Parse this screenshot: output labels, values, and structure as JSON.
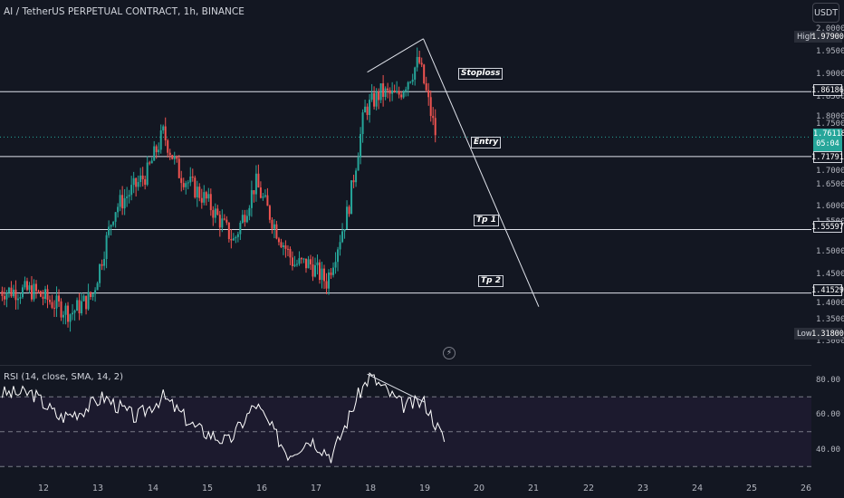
{
  "header": {
    "title": "AI / TetherUS PERPETUAL CONTRACT, 1h, BINANCE",
    "currency_button": "USDT"
  },
  "price_axis": {
    "ticks": [
      "2.00000",
      "1.95000",
      "1.90000",
      "1.85000",
      "1.80000",
      "1.75000",
      "1.70000",
      "1.65000",
      "1.60000",
      "1.55000",
      "1.50000",
      "1.45000",
      "1.40000",
      "1.35000",
      "1.30000"
    ],
    "high_label": "High",
    "high_value": "1.97900",
    "low_label": "Low",
    "low_value": "1.31800",
    "current_price": "1.76118",
    "countdown": "05:04"
  },
  "levels": {
    "stoploss": {
      "label": "Stoploss",
      "value": "1.86186"
    },
    "entry": {
      "label": "Entry",
      "value": "1.71791"
    },
    "tp1": {
      "label": "Tp 1",
      "value": "1.55597"
    },
    "tp2": {
      "label": "Tp 2",
      "value": "1.41529"
    }
  },
  "rsi": {
    "title": "RSI (14, close, SMA, 14, 2)",
    "ticks": [
      "80.00",
      "60.00",
      "40.00"
    ]
  },
  "time_axis": {
    "ticks": [
      "12",
      "13",
      "14",
      "15",
      "16",
      "17",
      "18",
      "19",
      "20",
      "21",
      "22",
      "23",
      "24",
      "25",
      "26"
    ]
  },
  "colors": {
    "background": "#131722",
    "up": "#26a69a",
    "down": "#ef5350",
    "rsi_line": "#ffffff",
    "rsi_band": "#1c1a2e"
  },
  "icons": {
    "alert": "lightning-icon"
  },
  "chart_data": {
    "type": "candlestick",
    "symbol": "AI / TetherUS PERPETUAL CONTRACT",
    "interval": "1h",
    "x_range": [
      "12",
      "26"
    ],
    "ylim": [
      1.3,
      2.0
    ],
    "horizontal_levels": [
      1.86186,
      1.71791,
      1.55597,
      1.41529
    ],
    "session_high": 1.979,
    "session_low": 1.318,
    "last_price": 1.76118,
    "anchor_points": [
      {
        "x": "11.8",
        "y": 1.42
      },
      {
        "x": "12.5",
        "y": 1.37
      },
      {
        "x": "12.9",
        "y": 1.41
      },
      {
        "x": "13.3",
        "y": 1.6
      },
      {
        "x": "13.9",
        "y": 1.68
      },
      {
        "x": "14.2",
        "y": 1.77
      },
      {
        "x": "14.5",
        "y": 1.68
      },
      {
        "x": "15.0",
        "y": 1.62
      },
      {
        "x": "15.5",
        "y": 1.53
      },
      {
        "x": "15.9",
        "y": 1.66
      },
      {
        "x": "16.3",
        "y": 1.55
      },
      {
        "x": "16.6",
        "y": 1.48
      },
      {
        "x": "16.9",
        "y": 1.48
      },
      {
        "x": "17.2",
        "y": 1.44
      },
      {
        "x": "17.6",
        "y": 1.6
      },
      {
        "x": "17.9",
        "y": 1.82
      },
      {
        "x": "18.2",
        "y": 1.86
      },
      {
        "x": "18.5",
        "y": 1.85
      },
      {
        "x": "18.9",
        "y": 1.93
      },
      {
        "x": "19.2",
        "y": 1.77
      }
    ],
    "rsi_ylim": [
      30,
      85
    ],
    "rsi_bands": [
      70,
      50,
      30
    ],
    "rsi_anchor_points": [
      {
        "x": "11.8",
        "y": 72
      },
      {
        "x": "12.3",
        "y": 58
      },
      {
        "x": "12.7",
        "y": 62
      },
      {
        "x": "13.1",
        "y": 70
      },
      {
        "x": "13.7",
        "y": 58
      },
      {
        "x": "14.2",
        "y": 70
      },
      {
        "x": "14.8",
        "y": 52
      },
      {
        "x": "15.4",
        "y": 44
      },
      {
        "x": "15.9",
        "y": 66
      },
      {
        "x": "16.5",
        "y": 37
      },
      {
        "x": "16.9",
        "y": 46
      },
      {
        "x": "17.3",
        "y": 36
      },
      {
        "x": "17.8",
        "y": 72
      },
      {
        "x": "18.0",
        "y": 82
      },
      {
        "x": "18.6",
        "y": 65
      },
      {
        "x": "19.0",
        "y": 67
      },
      {
        "x": "19.4",
        "y": 43
      }
    ]
  }
}
